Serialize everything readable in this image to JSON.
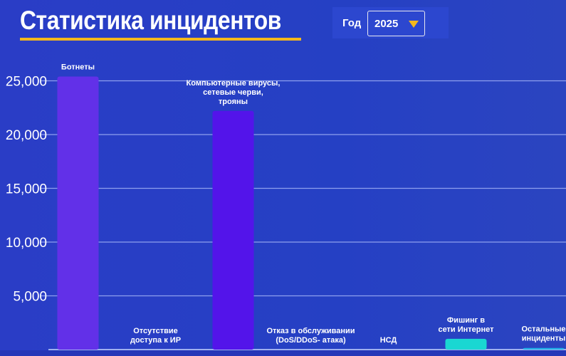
{
  "header": {
    "title": "Статистика инцидентов",
    "year_label": "Год",
    "year_value": "2025"
  },
  "chart_data": {
    "type": "bar",
    "title": "Статистика инцидентов",
    "categories": [
      [
        "Ботнеты"
      ],
      [
        "Отсутствие",
        "доступа к ИР"
      ],
      [
        "Компьютерные вирусы,",
        "сетевые черви,",
        "трояны"
      ],
      [
        "Отказ в обслуживании",
        "(DoS/DDoS- атака)"
      ],
      [
        "НСД"
      ],
      [
        "Фишинг в",
        "сети Интернет"
      ],
      [
        "Остальные",
        "инциденты"
      ]
    ],
    "values": [
      25400,
      0,
      22200,
      0,
      0,
      1000,
      150
    ],
    "colors": [
      "#6230e8",
      "#5a2ee6",
      "#5314ea",
      "#4f30e0",
      "#3c50d8",
      "#1ad7d2",
      "#22b4e8"
    ],
    "ylim": [
      0,
      26000
    ],
    "yticks": [
      5000,
      10000,
      15000,
      20000,
      25000
    ],
    "ytick_labels": [
      "5,000",
      "10,000",
      "15,000",
      "20,000",
      "25,000"
    ],
    "grid": true
  }
}
